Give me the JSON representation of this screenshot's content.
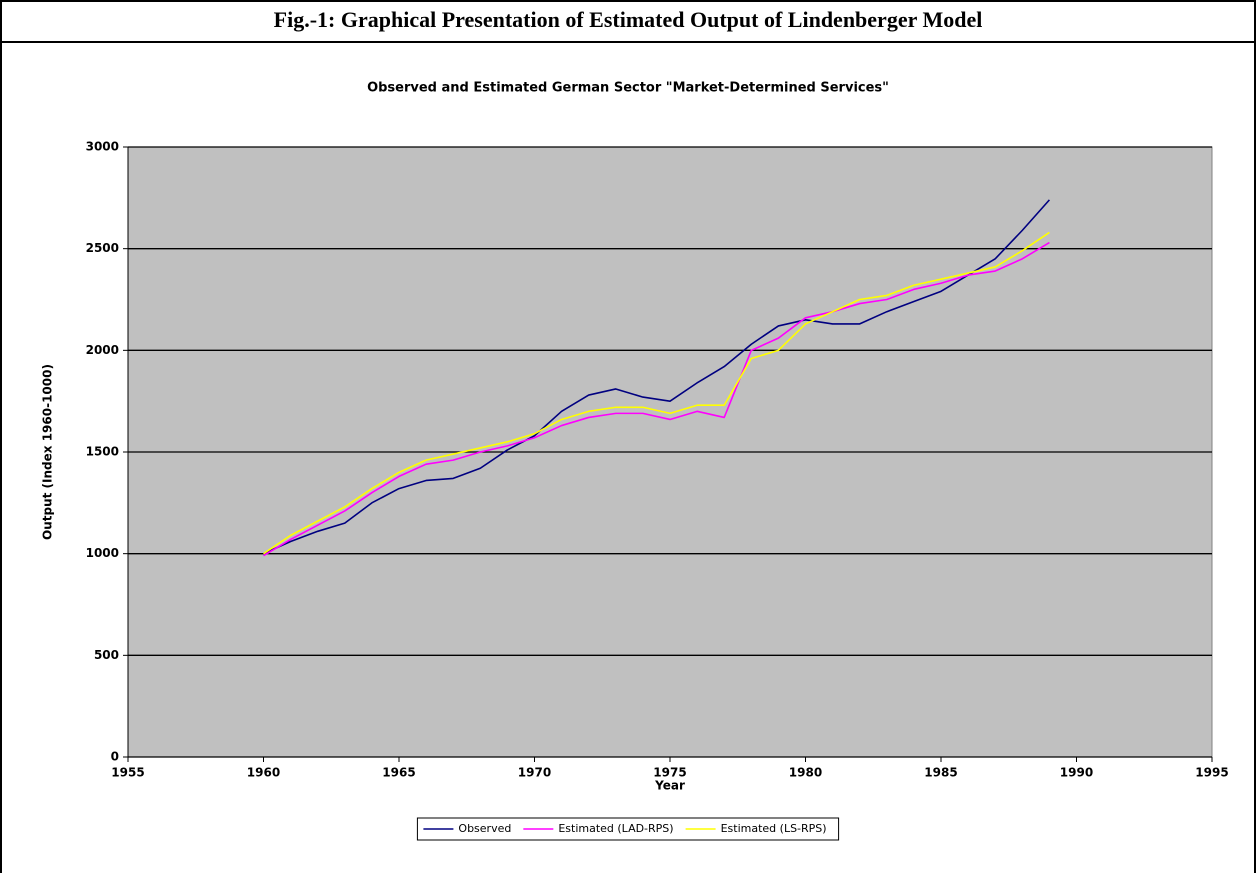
{
  "figure_title": "Fig.-1: Graphical Presentation of Estimated Output of Lindenberger Model",
  "chart_data": {
    "type": "line",
    "title": "Observed and Estimated German Sector \"Market-Determined Services\"",
    "x_label": "Year",
    "y_label": "Output (Index 1960-1000)",
    "x": [
      1960,
      1961,
      1962,
      1963,
      1964,
      1965,
      1966,
      1967,
      1968,
      1969,
      1970,
      1971,
      1972,
      1973,
      1974,
      1975,
      1976,
      1977,
      1978,
      1979,
      1980,
      1981,
      1982,
      1983,
      1984,
      1985,
      1986,
      1987,
      1988,
      1989
    ],
    "series": [
      {
        "name": "Observed",
        "color": "#000080",
        "values": [
          1000,
          1060,
          1110,
          1150,
          1250,
          1320,
          1360,
          1370,
          1420,
          1510,
          1580,
          1700,
          1780,
          1810,
          1770,
          1750,
          1840,
          1920,
          2030,
          2120,
          2150,
          2130,
          2130,
          2190,
          2240,
          2290,
          2370,
          2450,
          2590,
          2740
        ]
      },
      {
        "name": "Estimated (LAD-RPS)",
        "color": "#ff00ff",
        "values": [
          990,
          1070,
          1140,
          1210,
          1300,
          1380,
          1440,
          1460,
          1500,
          1530,
          1570,
          1630,
          1670,
          1690,
          1690,
          1660,
          1700,
          1670,
          2000,
          2060,
          2160,
          2190,
          2230,
          2250,
          2300,
          2330,
          2370,
          2390,
          2450,
          2530
        ]
      },
      {
        "name": "Estimated (LS-RPS)",
        "color": "#ffff00",
        "values": [
          1000,
          1090,
          1160,
          1230,
          1320,
          1400,
          1460,
          1490,
          1520,
          1550,
          1590,
          1660,
          1700,
          1720,
          1720,
          1690,
          1730,
          1730,
          1960,
          2000,
          2130,
          2190,
          2250,
          2270,
          2320,
          2350,
          2380,
          2410,
          2490,
          2580
        ]
      }
    ],
    "xlim": [
      1955,
      1995
    ],
    "xticks": [
      1955,
      1960,
      1965,
      1970,
      1975,
      1980,
      1985,
      1990,
      1995
    ],
    "ylim": [
      0,
      3000
    ],
    "yticks": [
      0,
      500,
      1000,
      1500,
      2000,
      2500,
      3000
    ],
    "grid": true,
    "plot_background": "#c0c0c0",
    "legend": "bottom"
  }
}
